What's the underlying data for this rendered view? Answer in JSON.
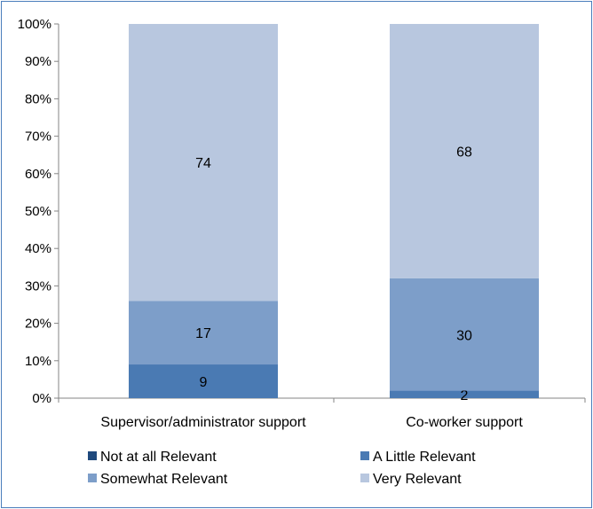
{
  "chart_data": {
    "type": "bar",
    "stacked": true,
    "percent_stacked": true,
    "title": "",
    "xlabel": "",
    "ylabel": "",
    "ylim": [
      0,
      100
    ],
    "y_ticks": [
      "0%",
      "10%",
      "20%",
      "30%",
      "40%",
      "50%",
      "60%",
      "70%",
      "80%",
      "90%",
      "100%"
    ],
    "grid": false,
    "legend_position": "bottom",
    "categories": [
      "Supervisor/administrator support",
      "Co-worker support"
    ],
    "series": [
      {
        "name": "Not at all Relevant",
        "values": [
          0,
          0
        ],
        "color": "#1f497d"
      },
      {
        "name": "A Little Relevant",
        "values": [
          9,
          2
        ],
        "color": "#4a7ab3"
      },
      {
        "name": "Somewhat Relevant",
        "values": [
          17,
          30
        ],
        "color": "#7d9ec9"
      },
      {
        "name": "Very Relevant",
        "values": [
          74,
          68
        ],
        "color": "#b8c7df"
      }
    ]
  }
}
